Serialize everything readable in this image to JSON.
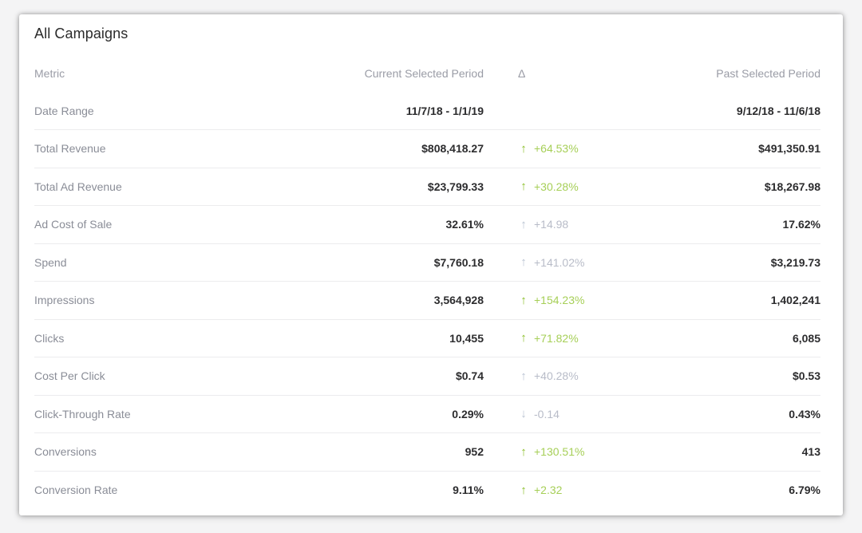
{
  "card": {
    "title": "All Campaigns"
  },
  "header": {
    "metric": "Metric",
    "current": "Current Selected Period",
    "delta": "Δ",
    "past": "Past Selected Period"
  },
  "date_range": {
    "label": "Date Range",
    "current": "11/7/18 - 1/1/19",
    "past": "9/12/18 - 11/6/18"
  },
  "rows": [
    {
      "metric": "Total Revenue",
      "current": "$808,418.27",
      "arrow": "↑",
      "direction": "up",
      "tone": "pos",
      "delta": "+64.53%",
      "past": "$491,350.91"
    },
    {
      "metric": "Total Ad Revenue",
      "current": "$23,799.33",
      "arrow": "↑",
      "direction": "up",
      "tone": "pos",
      "delta": "+30.28%",
      "past": "$18,267.98"
    },
    {
      "metric": "Ad Cost of Sale",
      "current": "32.61%",
      "arrow": "↑",
      "direction": "up",
      "tone": "neutral",
      "delta": "+14.98",
      "past": "17.62%"
    },
    {
      "metric": "Spend",
      "current": "$7,760.18",
      "arrow": "↑",
      "direction": "up",
      "tone": "neutral",
      "delta": "+141.02%",
      "past": "$3,219.73"
    },
    {
      "metric": "Impressions",
      "current": "3,564,928",
      "arrow": "↑",
      "direction": "up",
      "tone": "pos",
      "delta": "+154.23%",
      "past": "1,402,241"
    },
    {
      "metric": "Clicks",
      "current": "10,455",
      "arrow": "↑",
      "direction": "up",
      "tone": "pos",
      "delta": "+71.82%",
      "past": "6,085"
    },
    {
      "metric": "Cost Per Click",
      "current": "$0.74",
      "arrow": "↑",
      "direction": "up",
      "tone": "neutral",
      "delta": "+40.28%",
      "past": "$0.53"
    },
    {
      "metric": "Click-Through Rate",
      "current": "0.29%",
      "arrow": "↓",
      "direction": "down",
      "tone": "neutral",
      "delta": "-0.14",
      "past": "0.43%"
    },
    {
      "metric": "Conversions",
      "current": "952",
      "arrow": "↑",
      "direction": "up",
      "tone": "pos",
      "delta": "+130.51%",
      "past": "413"
    },
    {
      "metric": "Conversion Rate",
      "current": "9.11%",
      "arrow": "↑",
      "direction": "up",
      "tone": "pos",
      "delta": "+2.32",
      "past": "6.79%"
    }
  ],
  "colors": {
    "positive": "#8bbf2a",
    "neutral": "#b9c3d2",
    "label": "#8a8d97",
    "value": "#2c2c2e"
  }
}
